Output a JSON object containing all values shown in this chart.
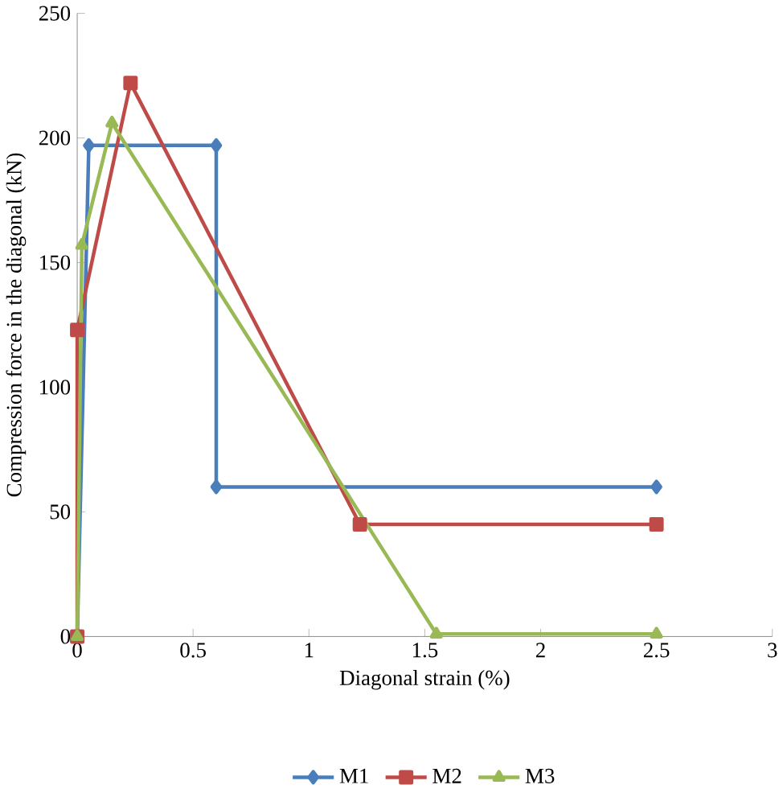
{
  "chart_data": {
    "type": "line",
    "xlabel": "Diagonal strain (%)",
    "ylabel": "Compression force in  the diagonal (kN)",
    "xlim": [
      0,
      3
    ],
    "ylim": [
      0,
      250
    ],
    "xticks": [
      0,
      0.5,
      1,
      1.5,
      2,
      2.5,
      3
    ],
    "yticks": [
      0,
      50,
      100,
      150,
      200,
      250
    ],
    "legend": "bottom",
    "grid": false,
    "series": [
      {
        "name": "M1",
        "color": "#4a7ebb",
        "marker": "diamond",
        "x": [
          0,
          0.05,
          0.6,
          0.6,
          2.5
        ],
        "values": [
          0,
          197,
          197,
          60,
          60
        ]
      },
      {
        "name": "M2",
        "color": "#be4b48",
        "marker": "square",
        "x": [
          0,
          0,
          0.23,
          1.22,
          2.5
        ],
        "values": [
          0,
          123,
          222,
          45,
          45
        ]
      },
      {
        "name": "M3",
        "color": "#98b954",
        "marker": "triangle",
        "x": [
          0,
          0.02,
          0.15,
          1.55,
          2.5
        ],
        "values": [
          0,
          157,
          206,
          1,
          1
        ]
      }
    ]
  }
}
